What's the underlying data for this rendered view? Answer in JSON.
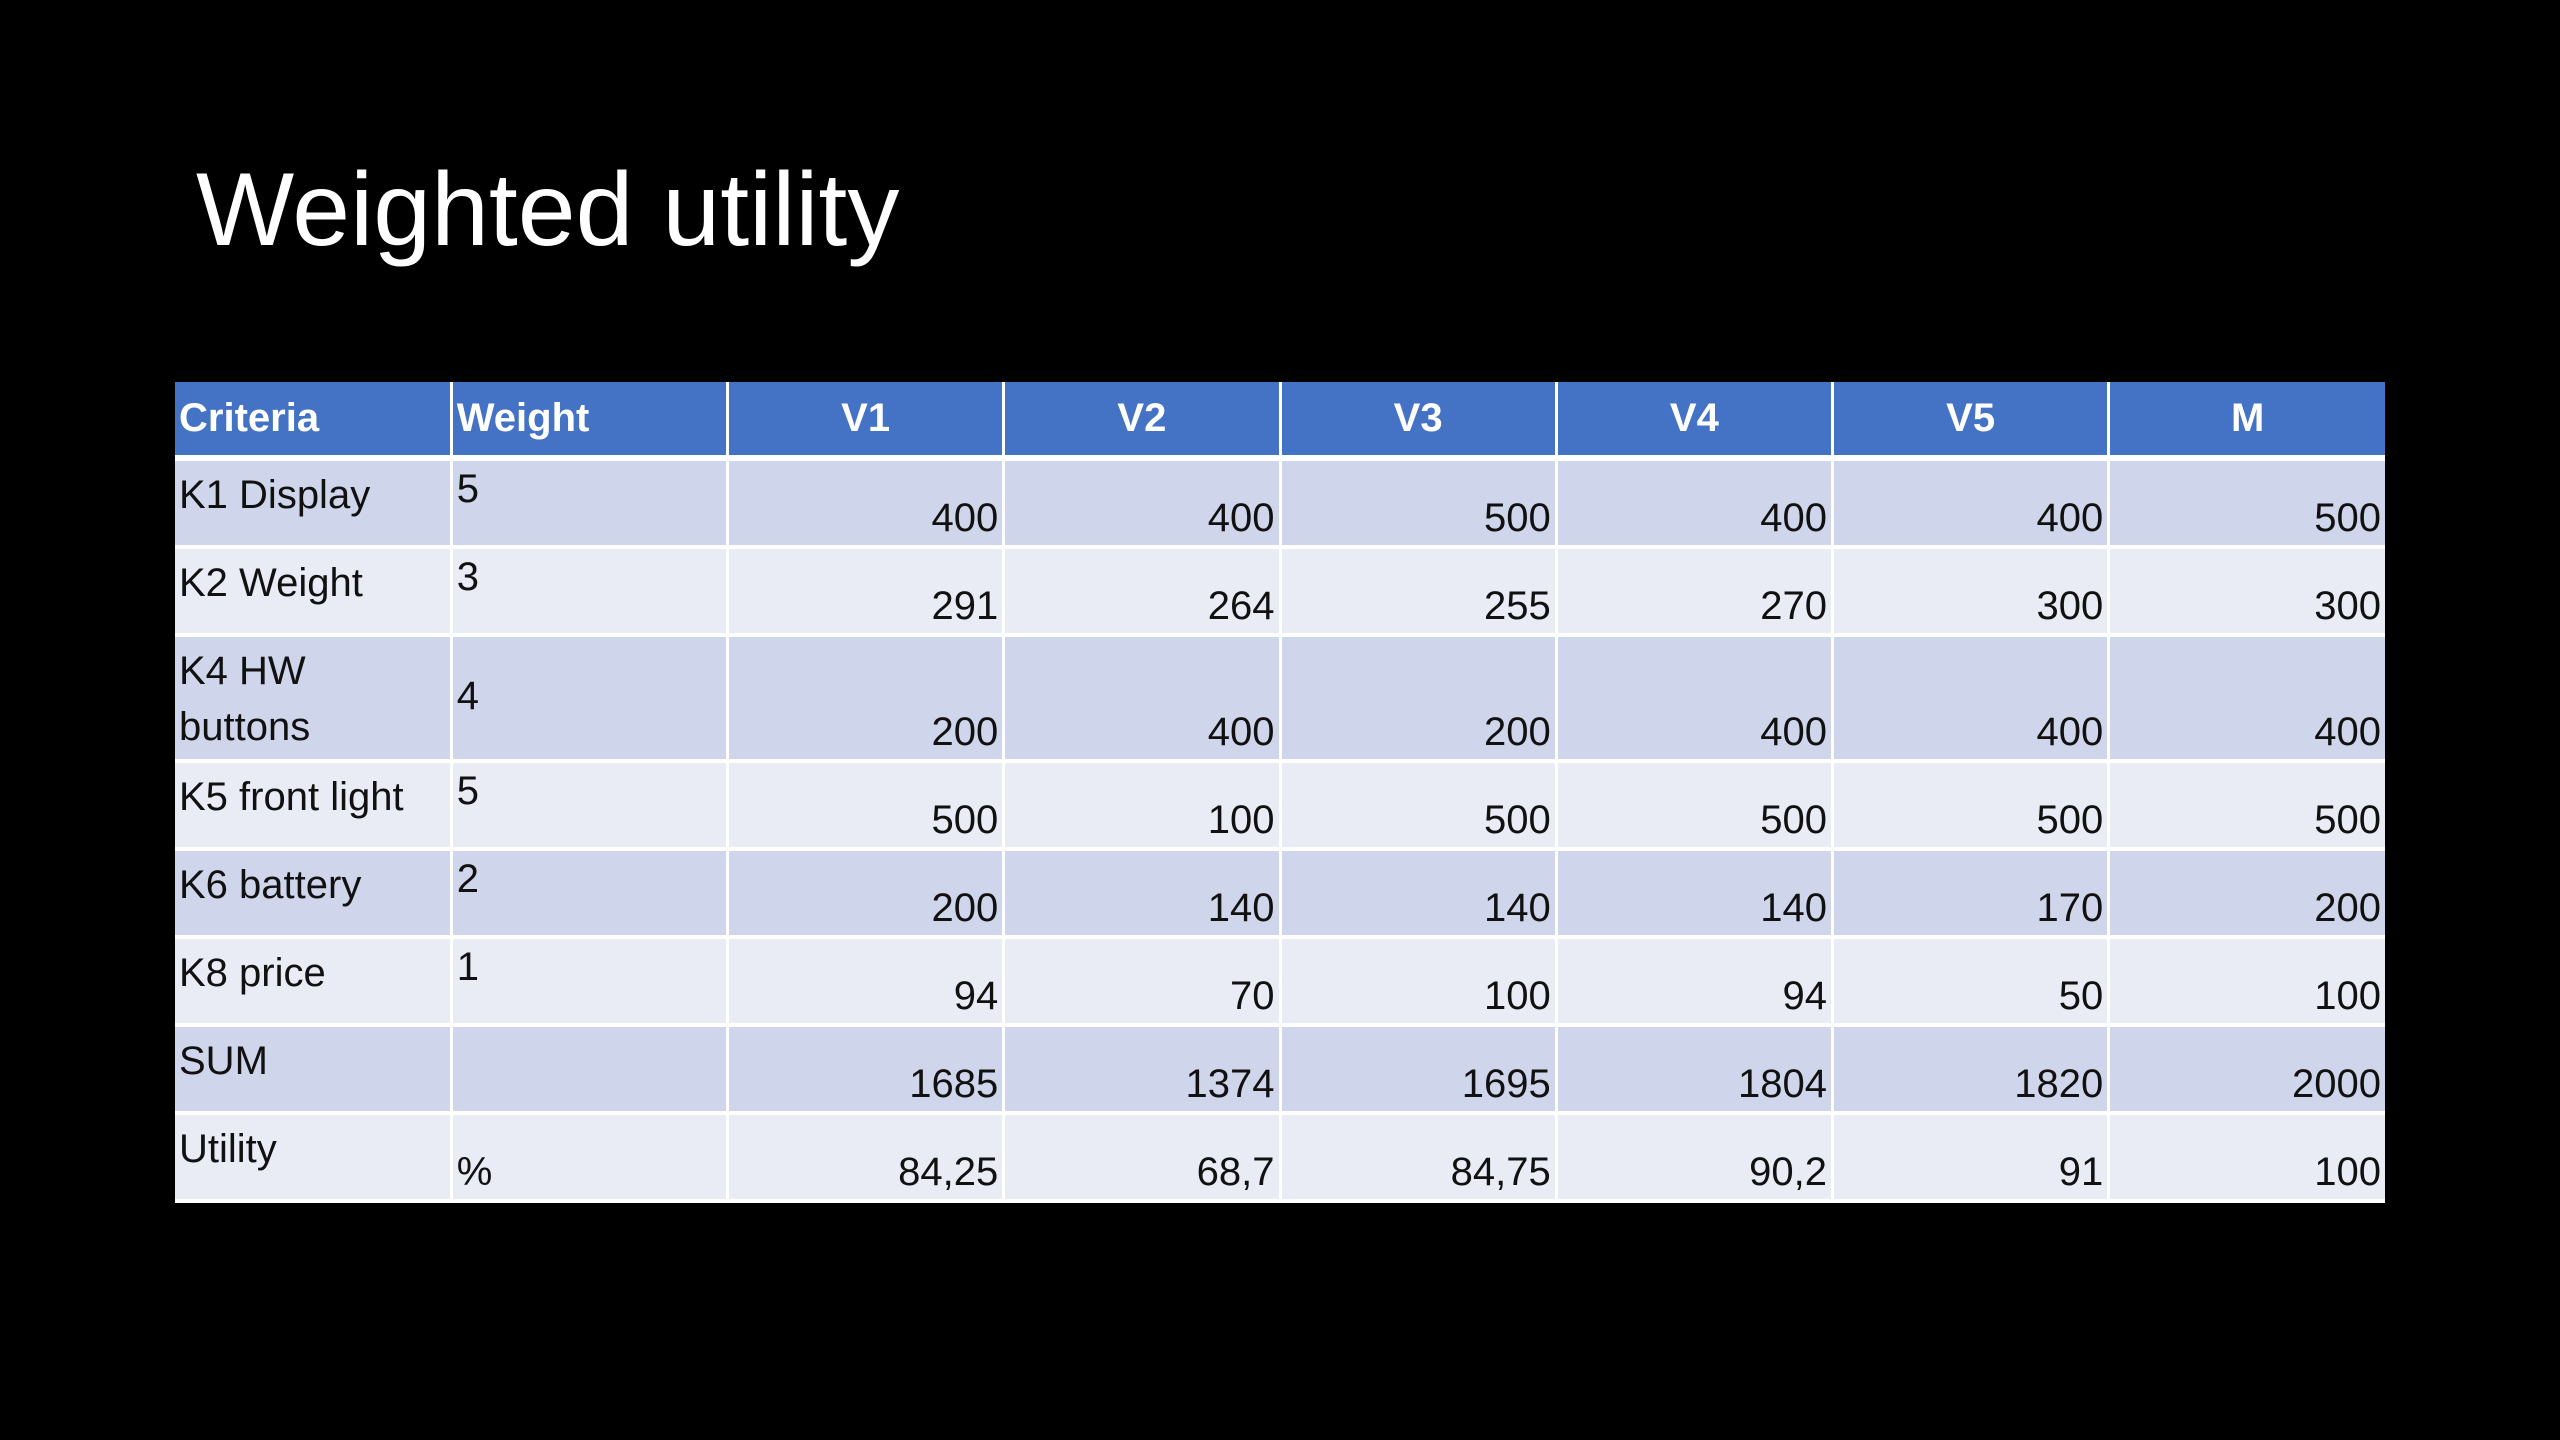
{
  "slide": {
    "title": "Weighted utility"
  },
  "table": {
    "headers": [
      "Criteria",
      "Weight",
      "V1",
      "V2",
      "V3",
      "V4",
      "V5",
      "M"
    ],
    "rows": [
      {
        "criteria": "K1 Display",
        "weight": "5",
        "values": [
          "400",
          "400",
          "500",
          "400",
          "400",
          "500"
        ]
      },
      {
        "criteria": "K2 Weight",
        "weight": "3",
        "values": [
          "291",
          "264",
          "255",
          "270",
          "300",
          "300"
        ]
      },
      {
        "criteria": "K4 HW buttons",
        "weight": "4",
        "values": [
          "200",
          "400",
          "200",
          "400",
          "400",
          "400"
        ]
      },
      {
        "criteria": "K5 front light",
        "weight": "5",
        "values": [
          "500",
          "100",
          "500",
          "500",
          "500",
          "500"
        ]
      },
      {
        "criteria": "K6 battery",
        "weight": "2",
        "values": [
          "200",
          "140",
          "140",
          "140",
          "170",
          "200"
        ]
      },
      {
        "criteria": "K8 price",
        "weight": "1",
        "values": [
          "94",
          "70",
          "100",
          "94",
          "50",
          "100"
        ]
      },
      {
        "criteria": "SUM",
        "weight": "",
        "values": [
          "1685",
          "1374",
          "1695",
          "1804",
          "1820",
          "2000"
        ]
      },
      {
        "criteria": "Utility",
        "weight": "%",
        "values": [
          "84,25",
          "68,7",
          "84,75",
          "90,2",
          "91",
          "100"
        ]
      }
    ]
  },
  "colors": {
    "background": "#000000",
    "header": "#4472c4",
    "row_dark": "#cfd5ea",
    "row_light": "#e9ebf5",
    "title_text": "#ffffff"
  }
}
